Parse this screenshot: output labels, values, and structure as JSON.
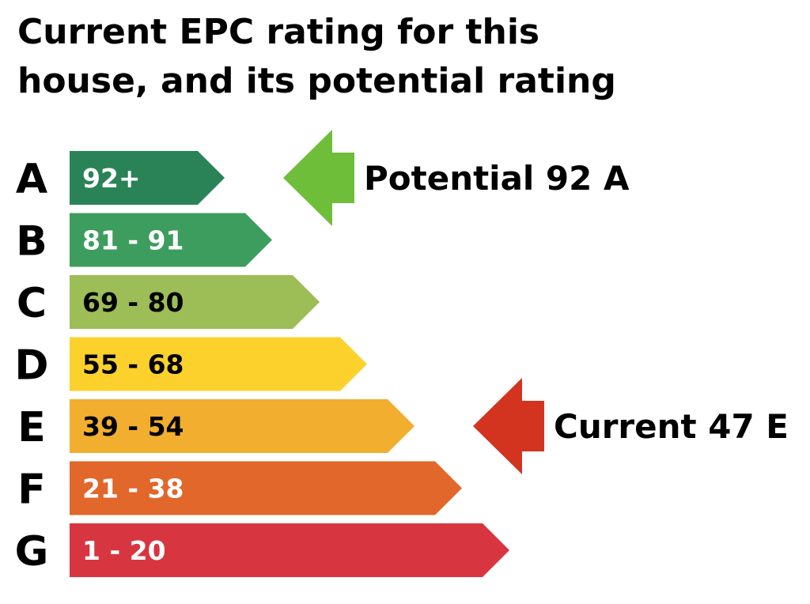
{
  "title": "Current EPC rating for this\nhouse, and its potential rating",
  "chart_data": {
    "type": "bar",
    "title": "Current EPC rating for this\nhouse, and its potential rating",
    "categories": [
      "A",
      "B",
      "C",
      "D",
      "E",
      "F",
      "G"
    ],
    "bands": [
      {
        "letter": "A",
        "range": "92+",
        "min": 92,
        "max": 100,
        "color": "#2a8257",
        "text_color": "#ffffff"
      },
      {
        "letter": "B",
        "range": "81 - 91",
        "min": 81,
        "max": 91,
        "color": "#3d9d5e",
        "text_color": "#ffffff"
      },
      {
        "letter": "C",
        "range": "69 - 80",
        "min": 69,
        "max": 80,
        "color": "#9dbd57",
        "text_color": "#000000"
      },
      {
        "letter": "D",
        "range": "55 - 68",
        "min": 55,
        "max": 68,
        "color": "#fcd12c",
        "text_color": "#000000"
      },
      {
        "letter": "E",
        "range": "39 - 54",
        "min": 39,
        "max": 54,
        "color": "#f1ae2f",
        "text_color": "#000000"
      },
      {
        "letter": "F",
        "range": "21 - 38",
        "min": 21,
        "max": 38,
        "color": "#e1672a",
        "text_color": "#ffffff"
      },
      {
        "letter": "G",
        "range": "1 - 20",
        "min": 1,
        "max": 20,
        "color": "#d73540",
        "text_color": "#ffffff"
      }
    ],
    "ratings": [
      {
        "kind": "potential",
        "label": "Potential 92 A",
        "score": 92,
        "band": "A",
        "color": "#6fbe3a"
      },
      {
        "kind": "current",
        "label": "Current 47 E",
        "score": 47,
        "band": "E",
        "color": "#d2341f"
      }
    ]
  }
}
